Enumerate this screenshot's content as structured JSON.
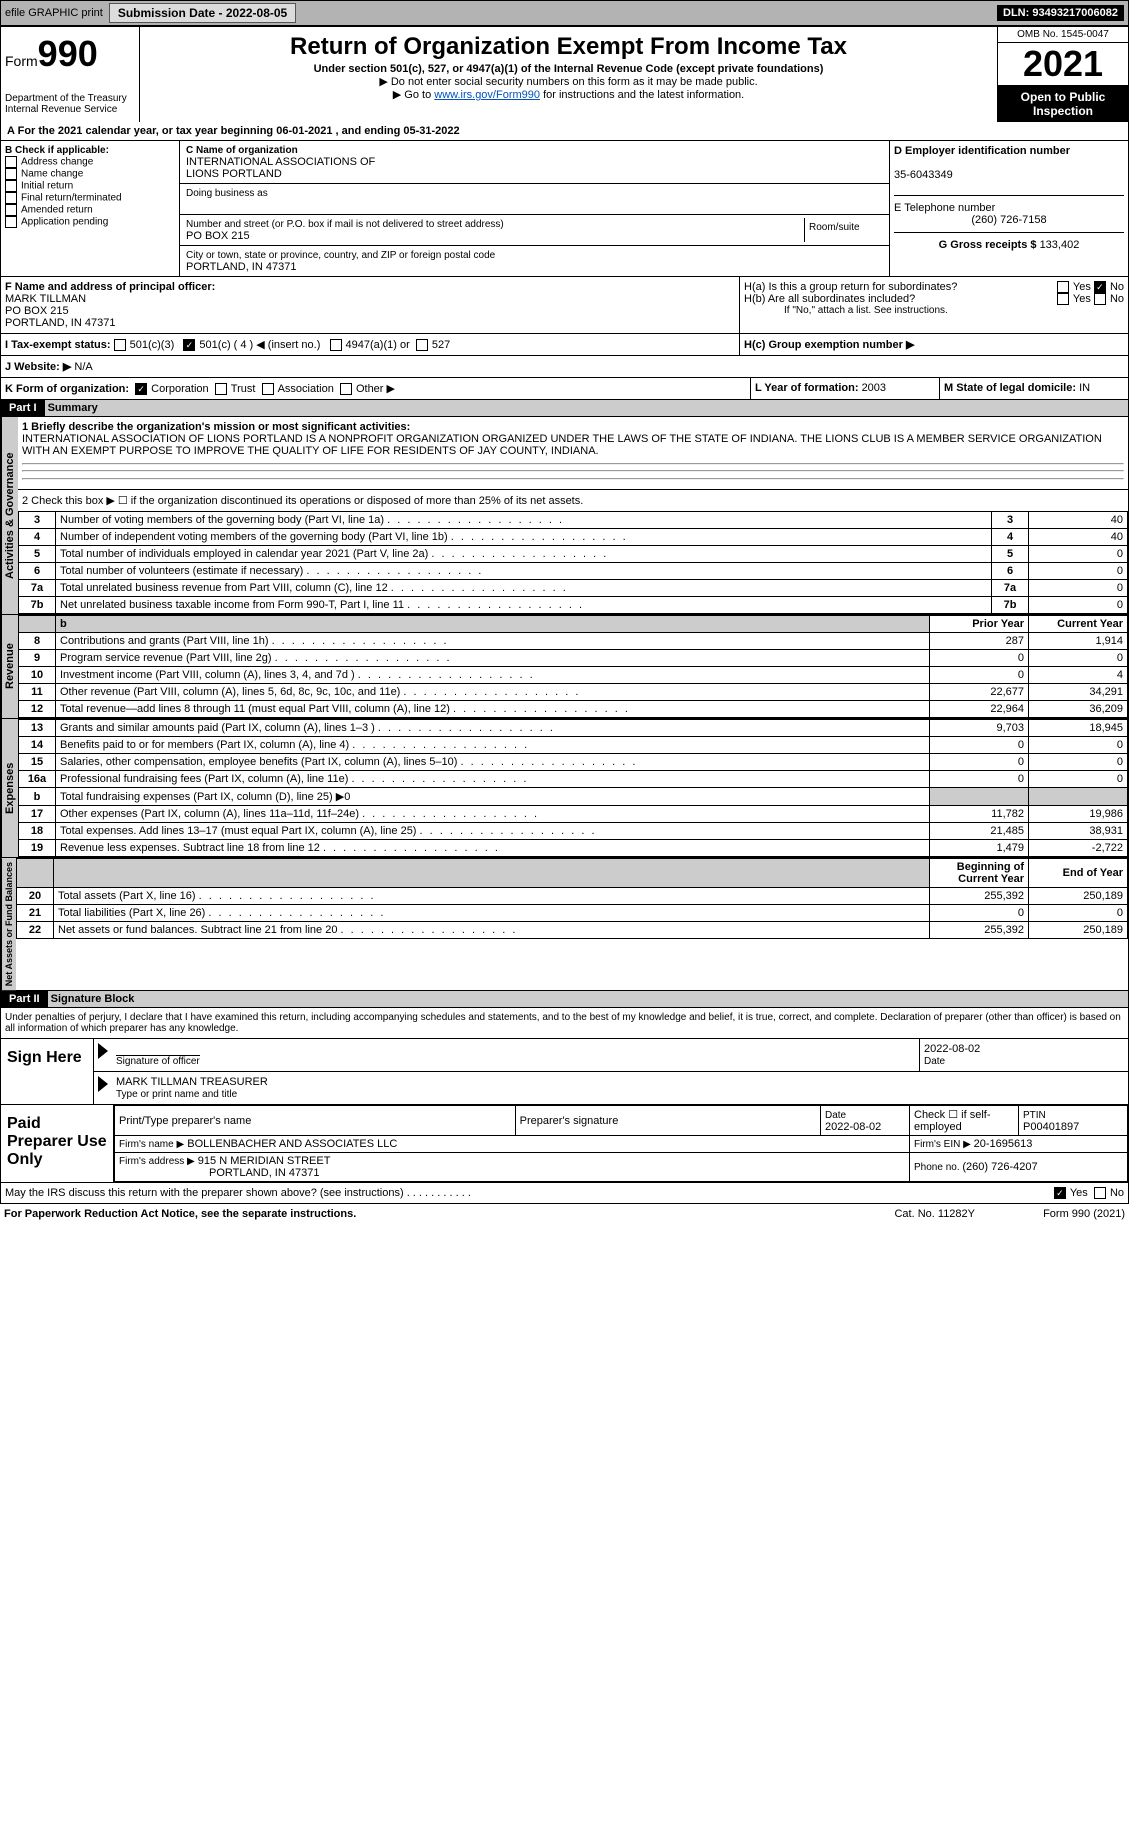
{
  "topbar": {
    "efile": "efile GRAPHIC print",
    "subdate_lbl": "Submission Date - ",
    "subdate": "2022-08-05",
    "dln_lbl": "DLN: ",
    "dln": "93493217006082"
  },
  "form": {
    "form": "Form",
    "num": "990",
    "title": "Return of Organization Exempt From Income Tax",
    "sub": "Under section 501(c), 527, or 4947(a)(1) of the Internal Revenue Code (except private foundations)",
    "note1": "▶ Do not enter social security numbers on this form as it may be made public.",
    "note2_pre": "▶ Go to ",
    "note2_link": "www.irs.gov/Form990",
    "note2_post": " for instructions and the latest information.",
    "dept": "Department of the Treasury",
    "irs": "Internal Revenue Service",
    "omb": "OMB No. 1545-0047",
    "year": "2021",
    "open": "Open to Public Inspection"
  },
  "a": {
    "text": "For the 2021 calendar year, or tax year beginning ",
    "d1": "06-01-2021",
    "mid": " , and ending ",
    "d2": "05-31-2022"
  },
  "b": {
    "hdr": "B Check if applicable:",
    "items": [
      "Address change",
      "Name change",
      "Initial return",
      "Final return/terminated",
      "Amended return",
      "Application pending"
    ]
  },
  "c": {
    "name_lbl": "C Name of organization",
    "name": "INTERNATIONAL ASSOCIATIONS OF\nLIONS PORTLAND",
    "dba_lbl": "Doing business as",
    "dba": "",
    "addr_lbl": "Number and street (or P.O. box if mail is not delivered to street address)",
    "room_lbl": "Room/suite",
    "addr": "PO BOX 215",
    "city_lbl": "City or town, state or province, country, and ZIP or foreign postal code",
    "city": "PORTLAND, IN  47371"
  },
  "d": {
    "lbl": "D Employer identification number",
    "val": "35-6043349"
  },
  "e": {
    "lbl": "E Telephone number",
    "val": "(260) 726-7158"
  },
  "g": {
    "lbl": "G Gross receipts $ ",
    "val": "133,402"
  },
  "f": {
    "lbl": "F  Name and address of principal officer:",
    "name": "MARK TILLMAN",
    "addr": "PO BOX 215",
    "city": "PORTLAND, IN  47371"
  },
  "h": {
    "a": "H(a)  Is this a group return for subordinates?",
    "yes": "Yes",
    "no": "No",
    "b": "H(b)  Are all subordinates included?",
    "bnote": "If \"No,\" attach a list. See instructions.",
    "c": "H(c)  Group exemption number ▶"
  },
  "i": {
    "lbl": "I  Tax-exempt status:",
    "o1": "501(c)(3)",
    "o2": "501(c) ( 4 ) ◀ (insert no.)",
    "o3": "4947(a)(1) or",
    "o4": "527"
  },
  "j": {
    "lbl": "J  Website: ▶",
    "val": "  N/A"
  },
  "k": {
    "lbl": "K Form of organization:",
    "o": [
      "Corporation",
      "Trust",
      "Association",
      "Other ▶"
    ]
  },
  "l": {
    "lbl": "L Year of formation: ",
    "val": "2003"
  },
  "m": {
    "lbl": "M State of legal domicile: ",
    "val": "IN"
  },
  "part1": {
    "hdr": "Part I",
    "title": "Summary"
  },
  "s1": {
    "q1": "1  Briefly describe the organization's mission or most significant activities:",
    "mission": "INTERNATIONAL ASSOCIATION OF LIONS PORTLAND IS A NONPROFIT ORGANIZATION ORGANIZED UNDER THE LAWS OF THE STATE OF INDIANA. THE LIONS CLUB IS A MEMBER SERVICE ORGANIZATION WITH AN EXEMPT PURPOSE TO IMPROVE THE QUALITY OF LIFE FOR RESIDENTS OF JAY COUNTY, INDIANA.",
    "q2": "2  Check this box ▶ ☐  if the organization discontinued its operations or disposed of more than 25% of its net assets."
  },
  "gov": {
    "side": "Activities & Governance",
    "rows": [
      {
        "n": "3",
        "t": "Number of voting members of the governing body (Part VI, line 1a)",
        "v": "40"
      },
      {
        "n": "4",
        "t": "Number of independent voting members of the governing body (Part VI, line 1b)",
        "v": "40"
      },
      {
        "n": "5",
        "t": "Total number of individuals employed in calendar year 2021 (Part V, line 2a)",
        "v": "0"
      },
      {
        "n": "6",
        "t": "Total number of volunteers (estimate if necessary)",
        "v": "0"
      },
      {
        "n": "7a",
        "t": "Total unrelated business revenue from Part VIII, column (C), line 12",
        "v": "0"
      },
      {
        "n": "7b",
        "t": "Net unrelated business taxable income from Form 990-T, Part I, line 11",
        "v": "0"
      }
    ]
  },
  "yrhdr": {
    "prior": "Prior Year",
    "curr": "Current Year"
  },
  "rev": {
    "side": "Revenue",
    "rows": [
      {
        "n": "8",
        "t": "Contributions and grants (Part VIII, line 1h)",
        "p": "287",
        "c": "1,914"
      },
      {
        "n": "9",
        "t": "Program service revenue (Part VIII, line 2g)",
        "p": "0",
        "c": "0"
      },
      {
        "n": "10",
        "t": "Investment income (Part VIII, column (A), lines 3, 4, and 7d )",
        "p": "0",
        "c": "4"
      },
      {
        "n": "11",
        "t": "Other revenue (Part VIII, column (A), lines 5, 6d, 8c, 9c, 10c, and 11e)",
        "p": "22,677",
        "c": "34,291"
      },
      {
        "n": "12",
        "t": "Total revenue—add lines 8 through 11 (must equal Part VIII, column (A), line 12)",
        "p": "22,964",
        "c": "36,209"
      }
    ]
  },
  "exp": {
    "side": "Expenses",
    "rows": [
      {
        "n": "13",
        "t": "Grants and similar amounts paid (Part IX, column (A), lines 1–3 )",
        "p": "9,703",
        "c": "18,945"
      },
      {
        "n": "14",
        "t": "Benefits paid to or for members (Part IX, column (A), line 4)",
        "p": "0",
        "c": "0"
      },
      {
        "n": "15",
        "t": "Salaries, other compensation, employee benefits (Part IX, column (A), lines 5–10)",
        "p": "0",
        "c": "0"
      },
      {
        "n": "16a",
        "t": "Professional fundraising fees (Part IX, column (A), line 11e)",
        "p": "0",
        "c": "0"
      },
      {
        "n": "b",
        "t": "Total fundraising expenses (Part IX, column (D), line 25) ▶0",
        "p": "",
        "c": "",
        "g": true
      },
      {
        "n": "17",
        "t": "Other expenses (Part IX, column (A), lines 11a–11d, 11f–24e)",
        "p": "11,782",
        "c": "19,986"
      },
      {
        "n": "18",
        "t": "Total expenses. Add lines 13–17 (must equal Part IX, column (A), line 25)",
        "p": "21,485",
        "c": "38,931"
      },
      {
        "n": "19",
        "t": "Revenue less expenses. Subtract line 18 from line 12",
        "p": "1,479",
        "c": "-2,722"
      }
    ]
  },
  "net": {
    "side": "Net Assets or Fund Balances",
    "hdr1": "Beginning of Current Year",
    "hdr2": "End of Year",
    "rows": [
      {
        "n": "20",
        "t": "Total assets (Part X, line 16)",
        "p": "255,392",
        "c": "250,189"
      },
      {
        "n": "21",
        "t": "Total liabilities (Part X, line 26)",
        "p": "0",
        "c": "0"
      },
      {
        "n": "22",
        "t": "Net assets or fund balances. Subtract line 21 from line 20",
        "p": "255,392",
        "c": "250,189"
      }
    ]
  },
  "part2": {
    "hdr": "Part II",
    "title": "Signature Block",
    "decl": "Under penalties of perjury, I declare that I have examined this return, including accompanying schedules and statements, and to the best of my knowledge and belief, it is true, correct, and complete. Declaration of preparer (other than officer) is based on all information of which preparer has any knowledge."
  },
  "sign": {
    "lbl": "Sign Here",
    "sigoff": "Signature of officer",
    "date": "2022-08-02",
    "datelbl": "Date",
    "name": "MARK TILLMAN TREASURER",
    "namelbl": "Type or print name and title"
  },
  "prep": {
    "lbl": "Paid Preparer Use Only",
    "h1": "Print/Type preparer's name",
    "h2": "Preparer's signature",
    "h3": "Date",
    "h4": "Check ☐ if self-employed",
    "h5": "PTIN",
    "date": "2022-08-02",
    "ptin": "P00401897",
    "firm_lbl": "Firm's name   ▶",
    "firm": "BOLLENBACHER AND ASSOCIATES LLC",
    "ein_lbl": "Firm's EIN ▶ ",
    "ein": "20-1695613",
    "addr_lbl": "Firm's address ▶",
    "addr": "915 N MERIDIAN STREET",
    "city": "PORTLAND, IN  47371",
    "phone_lbl": "Phone no. ",
    "phone": "(260) 726-4207"
  },
  "may": {
    "t": "May the IRS discuss this return with the preparer shown above? (see instructions)",
    "yes": "Yes",
    "no": "No"
  },
  "foot": {
    "pra": "For Paperwork Reduction Act Notice, see the separate instructions.",
    "cat": "Cat. No. 11282Y",
    "form": "Form 990 (2021)"
  }
}
